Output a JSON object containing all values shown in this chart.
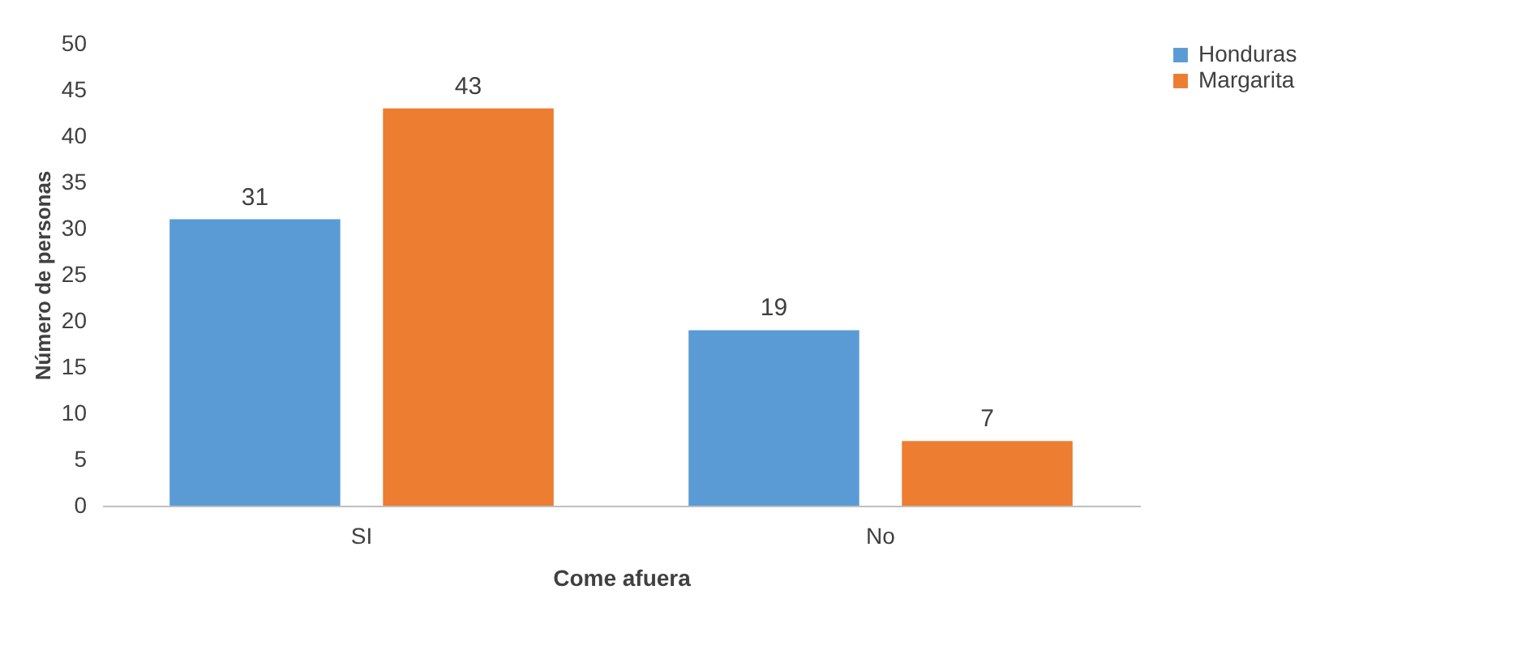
{
  "chart_data": {
    "type": "bar",
    "xlabel": "Come afuera",
    "ylabel": "Número de personas",
    "categories": [
      "SI",
      "No"
    ],
    "series": [
      {
        "name": "Honduras",
        "color": "#5b9bd5",
        "values": [
          31,
          19
        ]
      },
      {
        "name": "Margarita",
        "color": "#ed7d31",
        "values": [
          43,
          7
        ]
      }
    ],
    "ylim": [
      0,
      50
    ],
    "yticks": [
      0,
      5,
      10,
      15,
      20,
      25,
      30,
      35,
      40,
      45,
      50
    ],
    "grid": false,
    "legend": "right",
    "data_labels": true
  }
}
